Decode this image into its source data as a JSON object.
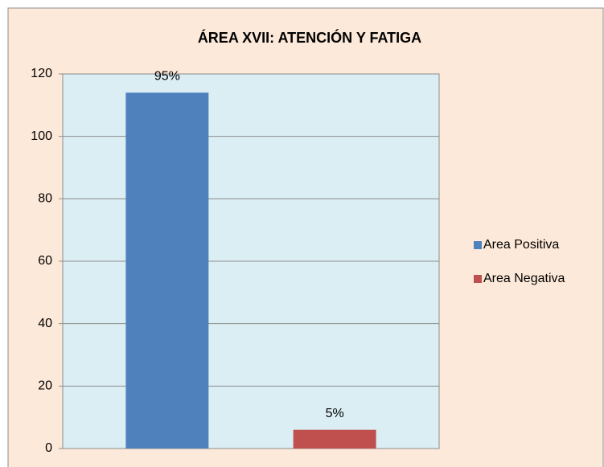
{
  "chart_data": {
    "type": "bar",
    "title": "ÁREA XVII: ATENCIÓN Y FATIGA",
    "categories": [
      null
    ],
    "series": [
      {
        "name": "Area Positiva",
        "color": "#4f81bd",
        "values": [
          114
        ]
      },
      {
        "name": "Area Negativa",
        "color": "#c0504d",
        "values": [
          6
        ]
      }
    ],
    "annotations": [
      "95%",
      "5%"
    ],
    "ylim": [
      0,
      120
    ],
    "yticks": [
      0,
      20,
      40,
      60,
      80,
      100,
      120
    ],
    "grid": true,
    "legend": "right"
  }
}
